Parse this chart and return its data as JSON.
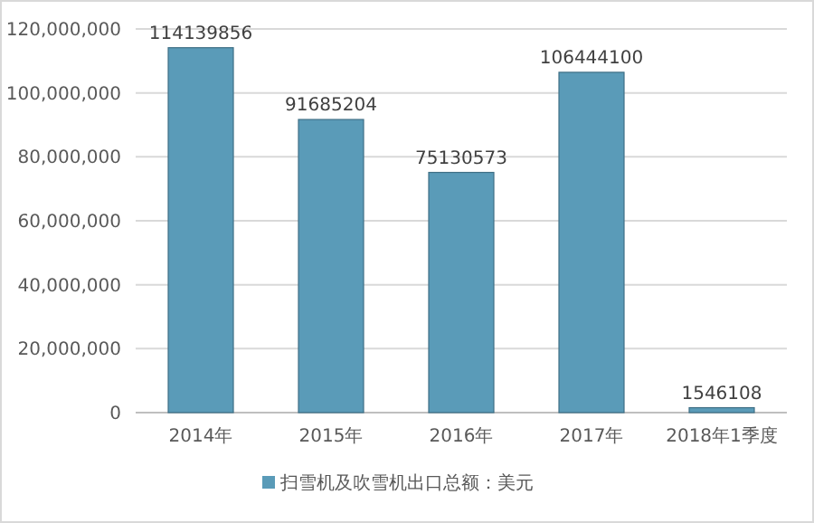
{
  "chart_data": {
    "type": "bar",
    "categories": [
      "2014年",
      "2015年",
      "2016年",
      "2017年",
      "2018年1季度"
    ],
    "series": [
      {
        "name": "扫雪机及吹雪机出口总额：美元",
        "color": "#5a9bb8",
        "values": [
          114139856,
          91685204,
          75130573,
          106444100,
          1546108
        ]
      }
    ],
    "ylim": [
      0,
      120000000
    ],
    "yticks": [
      0,
      {
        "value": 20000000,
        "label": "20,000,000"
      },
      {
        "value": 40000000,
        "label": "40,000,000"
      },
      {
        "value": 60000000,
        "label": "60,000,000"
      },
      {
        "value": 80000000,
        "label": "80,000,000"
      },
      {
        "value": 100000000,
        "label": "100,000,000"
      },
      {
        "value": 120000000,
        "label": "120,000,000"
      }
    ],
    "grid": "y",
    "legend": "bottom",
    "data_labels": true
  }
}
